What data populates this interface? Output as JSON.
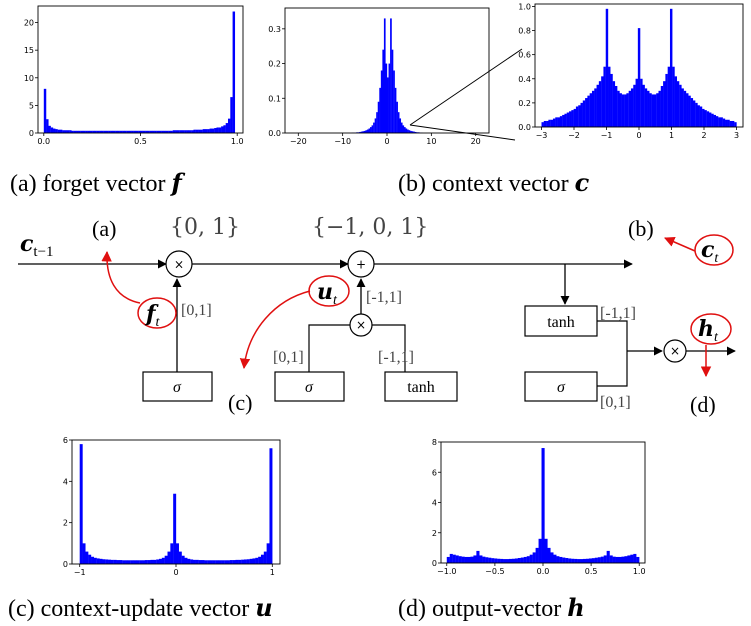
{
  "captions": {
    "a": {
      "text": "(a) forget vector ",
      "var": "f"
    },
    "b": {
      "text": "(b) context vector ",
      "var": "c"
    },
    "c": {
      "text": "(c) context-update vector ",
      "var": "u"
    },
    "d": {
      "text": "(d) output-vector ",
      "var": "h"
    }
  },
  "diagram": {
    "ctm1": "c",
    "ctm1_sub": "t−1",
    "label_a": "(a)",
    "label_b": "(b)",
    "label_c": "(c)",
    "label_d": "(d)",
    "set_forget": "{0, 1}",
    "set_context": "{−1, 0, 1}",
    "range_01_a": "[0,1]",
    "range_m11_a": "[-1,1]",
    "range_01_b": "[0,1]",
    "range_m11_b": "[-1,1]",
    "range_m11_c": "[-1,1]",
    "range_01_c": "[0,1]",
    "sigma": "σ",
    "tanh": "tanh",
    "times": "×",
    "plus": "+",
    "ft": "f",
    "ut": "u",
    "ct": "c",
    "ht": "h",
    "sub_t": "t",
    "accent_color": "#e01010",
    "bar_color": "#0000ff"
  },
  "chart_data": [
    {
      "id": "forget",
      "type": "bar",
      "xlim": [
        -0.03,
        1.03
      ],
      "ylim": [
        0,
        23
      ],
      "xticks": [
        "0.0",
        "0.5",
        "1.0"
      ],
      "xtick_values": [
        0.0,
        0.5,
        1.0
      ],
      "yticks": [
        "0",
        "5",
        "10",
        "15",
        "20"
      ],
      "ytick_values": [
        0,
        5,
        10,
        15,
        20
      ],
      "bins": {
        "start": 0.0,
        "end": 1.0,
        "values": [
          8.0,
          2.5,
          1.3,
          1.0,
          0.8,
          0.7,
          0.6,
          0.6,
          0.5,
          0.5,
          0.5,
          0.5,
          0.4,
          0.4,
          0.4,
          0.4,
          0.4,
          0.4,
          0.4,
          0.4,
          0.4,
          0.4,
          0.4,
          0.4,
          0.4,
          0.4,
          0.4,
          0.4,
          0.4,
          0.4,
          0.4,
          0.4,
          0.4,
          0.4,
          0.4,
          0.4,
          0.4,
          0.4,
          0.4,
          0.4,
          0.4,
          0.4,
          0.4,
          0.4,
          0.4,
          0.4,
          0.4,
          0.4,
          0.4,
          0.4,
          0.4,
          0.4,
          0.4,
          0.4,
          0.4,
          0.4,
          0.5,
          0.5,
          0.5,
          0.5,
          0.5,
          0.5,
          0.5,
          0.5,
          0.5,
          0.6,
          0.6,
          0.6,
          0.6,
          0.7,
          0.7,
          0.7,
          0.8,
          0.8,
          0.9,
          1.0,
          1.0,
          1.2,
          1.4,
          1.8,
          2.6,
          6.5,
          22.0,
          0.0
        ]
      }
    },
    {
      "id": "context",
      "type": "bar",
      "xlim": [
        -23,
        23
      ],
      "ylim": [
        0,
        0.36
      ],
      "xticks": [
        "−20",
        "−10",
        "0",
        "10",
        "20"
      ],
      "xtick_values": [
        -20,
        -10,
        0,
        10,
        20
      ],
      "yticks": [
        "0.0",
        "0.1",
        "0.2",
        "0.3"
      ],
      "ytick_values": [
        0,
        0.1,
        0.2,
        0.3
      ],
      "bins": {
        "start": -8,
        "end": 8,
        "values": [
          0.001,
          0.001,
          0.001,
          0.002,
          0.002,
          0.003,
          0.004,
          0.005,
          0.006,
          0.008,
          0.01,
          0.013,
          0.017,
          0.022,
          0.03,
          0.042,
          0.06,
          0.09,
          0.13,
          0.18,
          0.24,
          0.33,
          0.2,
          0.16,
          0.2,
          0.33,
          0.24,
          0.18,
          0.13,
          0.09,
          0.06,
          0.042,
          0.03,
          0.022,
          0.017,
          0.013,
          0.01,
          0.008,
          0.006,
          0.005,
          0.004,
          0.003,
          0.002,
          0.002,
          0.001,
          0.001
        ]
      }
    },
    {
      "id": "context-zoom",
      "type": "bar",
      "xlim": [
        -3.2,
        3.2
      ],
      "ylim": [
        0,
        1.02
      ],
      "xticks": [
        "−3",
        "−2",
        "−1",
        "0",
        "1",
        "2",
        "3"
      ],
      "xtick_values": [
        -3,
        -2,
        -1,
        0,
        1,
        2,
        3
      ],
      "yticks": [
        "0.0",
        "0.2",
        "0.4",
        "0.6",
        "0.8",
        "1.0"
      ],
      "ytick_values": [
        0,
        0.2,
        0.4,
        0.6,
        0.8,
        1.0
      ],
      "bins": {
        "start": -3,
        "end": 3,
        "values": [
          0.04,
          0.05,
          0.05,
          0.06,
          0.06,
          0.07,
          0.08,
          0.08,
          0.09,
          0.1,
          0.11,
          0.12,
          0.13,
          0.14,
          0.15,
          0.17,
          0.18,
          0.2,
          0.22,
          0.24,
          0.26,
          0.28,
          0.3,
          0.32,
          0.35,
          0.38,
          0.42,
          0.5,
          0.98,
          0.5,
          0.44,
          0.38,
          0.34,
          0.3,
          0.28,
          0.27,
          0.27,
          0.28,
          0.3,
          0.32,
          0.35,
          0.4,
          0.82,
          0.4,
          0.35,
          0.32,
          0.3,
          0.28,
          0.27,
          0.27,
          0.28,
          0.3,
          0.34,
          0.38,
          0.44,
          0.5,
          0.98,
          0.5,
          0.42,
          0.38,
          0.35,
          0.32,
          0.3,
          0.28,
          0.26,
          0.24,
          0.22,
          0.2,
          0.18,
          0.17,
          0.15,
          0.14,
          0.13,
          0.12,
          0.11,
          0.1,
          0.09,
          0.08,
          0.08,
          0.07,
          0.06,
          0.06,
          0.05,
          0.05,
          0.04
        ]
      }
    },
    {
      "id": "update",
      "type": "bar",
      "xlim": [
        -1.08,
        1.08
      ],
      "ylim": [
        0,
        6
      ],
      "xticks": [
        "−1",
        "0",
        "1"
      ],
      "xtick_values": [
        -1,
        0,
        1
      ],
      "yticks": [
        "0",
        "2",
        "4",
        "6"
      ],
      "ytick_values": [
        0,
        2,
        4,
        6
      ],
      "bins": {
        "start": -1,
        "end": 1,
        "values": [
          5.8,
          1.0,
          0.6,
          0.45,
          0.35,
          0.3,
          0.27,
          0.25,
          0.23,
          0.22,
          0.21,
          0.2,
          0.2,
          0.19,
          0.19,
          0.18,
          0.18,
          0.18,
          0.18,
          0.18,
          0.18,
          0.18,
          0.18,
          0.19,
          0.19,
          0.2,
          0.2,
          0.22,
          0.25,
          0.3,
          0.4,
          0.6,
          1.0,
          3.4,
          1.0,
          0.6,
          0.4,
          0.3,
          0.25,
          0.22,
          0.2,
          0.2,
          0.19,
          0.19,
          0.18,
          0.18,
          0.18,
          0.18,
          0.18,
          0.18,
          0.18,
          0.18,
          0.18,
          0.19,
          0.19,
          0.2,
          0.2,
          0.21,
          0.22,
          0.23,
          0.25,
          0.27,
          0.3,
          0.35,
          0.45,
          0.6,
          1.0,
          5.6
        ]
      }
    },
    {
      "id": "output",
      "type": "bar",
      "xlim": [
        -1.06,
        1.06
      ],
      "ylim": [
        0,
        8
      ],
      "xticks": [
        "−1.0",
        "−0.5",
        "0.0",
        "0.5",
        "1.0"
      ],
      "xtick_values": [
        -1,
        -0.5,
        0,
        0.5,
        1
      ],
      "yticks": [
        "0",
        "2",
        "4",
        "6",
        "8"
      ],
      "ytick_values": [
        0,
        2,
        4,
        6,
        8
      ],
      "bins": {
        "start": -1,
        "end": 1,
        "values": [
          0.4,
          0.6,
          0.55,
          0.5,
          0.45,
          0.42,
          0.4,
          0.4,
          0.42,
          0.5,
          0.8,
          0.5,
          0.42,
          0.38,
          0.35,
          0.32,
          0.3,
          0.28,
          0.27,
          0.26,
          0.26,
          0.27,
          0.28,
          0.3,
          0.33,
          0.36,
          0.4,
          0.45,
          0.55,
          0.7,
          1.0,
          1.6,
          7.6,
          1.6,
          1.0,
          0.7,
          0.55,
          0.45,
          0.4,
          0.36,
          0.33,
          0.3,
          0.28,
          0.27,
          0.26,
          0.26,
          0.27,
          0.28,
          0.3,
          0.32,
          0.35,
          0.38,
          0.42,
          0.5,
          0.8,
          0.5,
          0.42,
          0.4,
          0.4,
          0.42,
          0.45,
          0.5,
          0.55,
          0.6,
          0.4
        ]
      }
    }
  ]
}
